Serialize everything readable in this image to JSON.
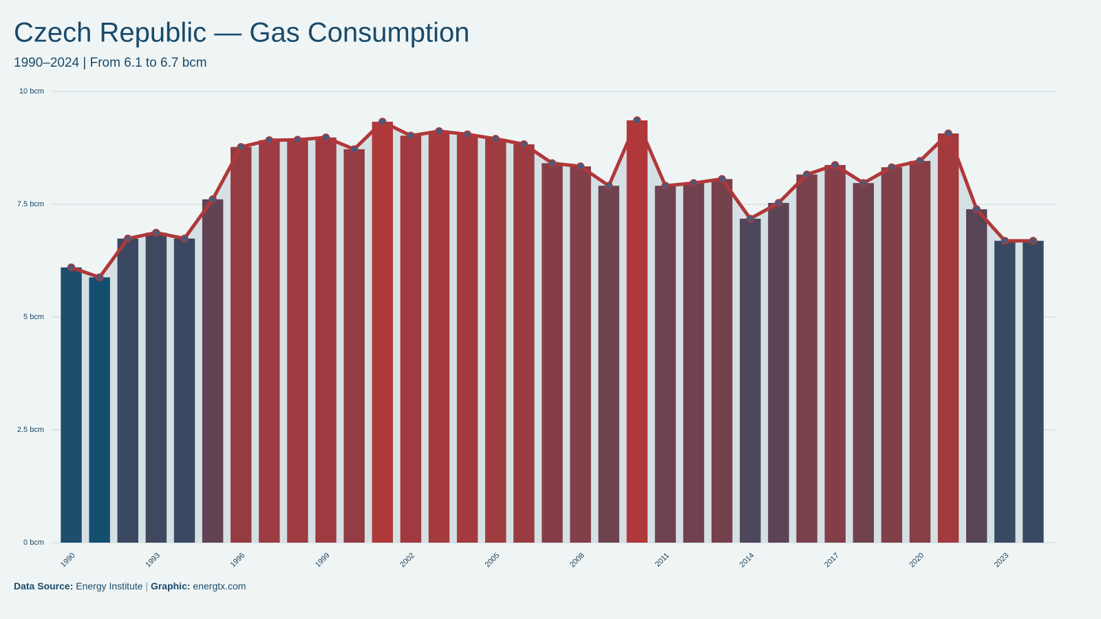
{
  "chart_data": {
    "type": "bar",
    "title": "Czech Republic — Gas Consumption",
    "subtitle": "1990–2024 | From 6.1 to 6.7 bcm",
    "categories": [
      "1990",
      null,
      null,
      "1993",
      null,
      null,
      "1996",
      null,
      null,
      "1999",
      null,
      null,
      "2002",
      null,
      null,
      "2005",
      null,
      null,
      "2008",
      null,
      null,
      "2011",
      null,
      null,
      "2014",
      null,
      null,
      "2017",
      null,
      null,
      "2020",
      null,
      null,
      "2023",
      null
    ],
    "values": [
      6.1,
      5.88,
      6.74,
      6.87,
      6.74,
      7.61,
      8.77,
      8.92,
      8.93,
      8.98,
      8.72,
      9.33,
      9.02,
      9.12,
      9.05,
      8.95,
      8.83,
      8.41,
      8.34,
      7.91,
      9.36,
      7.91,
      7.97,
      8.06,
      7.18,
      7.53,
      8.16,
      8.37,
      7.97,
      8.32,
      8.46,
      9.07,
      7.39,
      6.69,
      6.69
    ],
    "ylim": [
      0,
      10
    ],
    "yticks": [
      {
        "value": 0,
        "label": "0 bcm"
      },
      {
        "value": 2.5,
        "label": "2.5 bcm"
      },
      {
        "value": 5,
        "label": "5 bcm"
      },
      {
        "value": 7.5,
        "label": "7.5 bcm"
      },
      {
        "value": 10,
        "label": "10 bcm"
      }
    ],
    "grid": true,
    "color_scale": [
      "#134f6e",
      "#b0383a"
    ],
    "line": {
      "color": "#b0383a",
      "marker_color": "#4a5a78",
      "area_color": "#d5e0e4"
    },
    "footer": {
      "source_label": "Data Source:",
      "source": "Energy Institute",
      "separator": "|",
      "graphic_label": "Graphic:",
      "graphic": "energtx.com"
    }
  }
}
